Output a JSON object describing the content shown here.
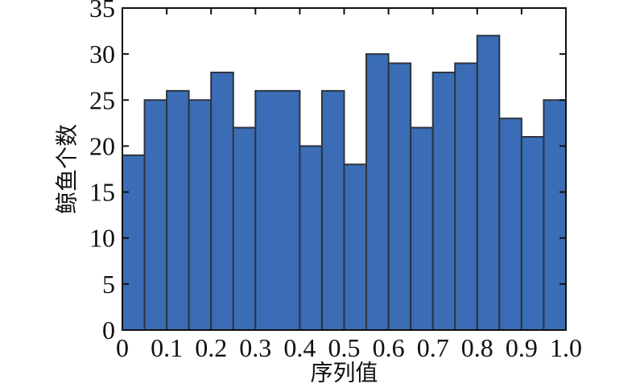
{
  "figure": {
    "background": "#ffffff"
  },
  "chart_data": {
    "type": "bar",
    "subtype": "histogram",
    "title": "",
    "xlabel": "序列值",
    "ylabel": "鲸鱼个数",
    "bin_edges": [
      0,
      0.05,
      0.1,
      0.15,
      0.2,
      0.25,
      0.3,
      0.35,
      0.4,
      0.45,
      0.5,
      0.55,
      0.6,
      0.65,
      0.7,
      0.75,
      0.8,
      0.85,
      0.9,
      0.95,
      1.0
    ],
    "values": [
      19,
      25,
      26,
      25,
      28,
      22,
      26,
      26,
      20,
      26,
      18,
      30,
      29,
      22,
      28,
      29,
      32,
      23,
      21,
      25
    ],
    "xlim": [
      0,
      1
    ],
    "ylim": [
      0,
      35
    ],
    "xticks": {
      "values": [
        0,
        0.1,
        0.2,
        0.3,
        0.4,
        0.5,
        0.6,
        0.7,
        0.8,
        0.9,
        1.0
      ],
      "labels": [
        "0",
        "0.1",
        "0.2",
        "0.3",
        "0.4",
        "0.5",
        "0.6",
        "0.7",
        "0.8",
        "0.9",
        "1.0"
      ]
    },
    "yticks": {
      "values": [
        0,
        5,
        10,
        15,
        20,
        25,
        30,
        35
      ],
      "labels": [
        "0",
        "5",
        "10",
        "15",
        "20",
        "25",
        "30",
        "35"
      ]
    },
    "grid": false,
    "legend": null,
    "colors": {
      "bar_fill": "#3a6db5",
      "bar_edge": "#2d3440",
      "axis": "#111111",
      "text": "#111111"
    }
  }
}
